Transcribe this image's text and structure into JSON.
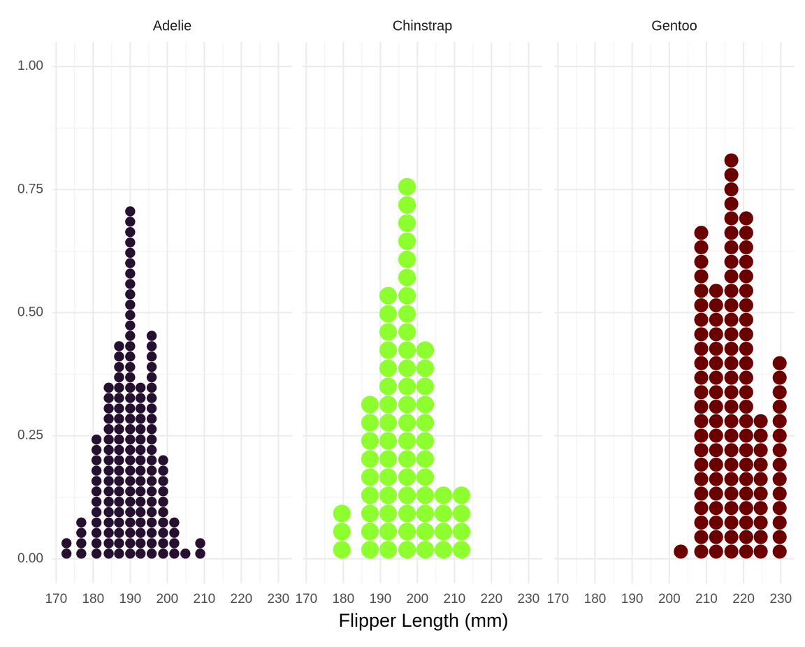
{
  "chart_data": {
    "type": "dotplot",
    "x_label": "Flipper Length (mm)",
    "xlim": [
      169,
      233.7
    ],
    "xticks": [
      170,
      180,
      190,
      200,
      210,
      220,
      230
    ],
    "ylim": [
      -0.05,
      1.05
    ],
    "yticks": [
      {
        "value": 0,
        "label": "0.00"
      },
      {
        "value": 0.25,
        "label": "0.25"
      },
      {
        "value": 0.5,
        "label": "0.50"
      },
      {
        "value": 0.75,
        "label": "0.75"
      },
      {
        "value": 1,
        "label": "1.00"
      }
    ],
    "grid": true,
    "facets": [
      {
        "title": "Adelie",
        "color": "#26102f",
        "x": [
          172.8,
          176.8,
          180.9,
          184.2,
          187.0,
          190.0,
          192.8,
          195.8,
          198.9,
          201.9,
          204.9,
          208.9
        ],
        "values": [
          2,
          4,
          12,
          17,
          21,
          34,
          17,
          22,
          10,
          4,
          1,
          2
        ]
      },
      {
        "title": "Chinstrap",
        "color": "#8eff2e",
        "x": [
          179.6,
          187.2,
          192.1,
          197.2,
          202.1,
          207.0,
          211.9
        ],
        "values": [
          3,
          9,
          15,
          21,
          12,
          4,
          4
        ]
      },
      {
        "title": "Gentoo",
        "color": "#6b0000",
        "x": [
          203.1,
          208.6,
          212.6,
          216.7,
          220.7,
          224.6,
          229.7
        ],
        "values": [
          1,
          23,
          19,
          28,
          24,
          10,
          14
        ]
      }
    ]
  }
}
